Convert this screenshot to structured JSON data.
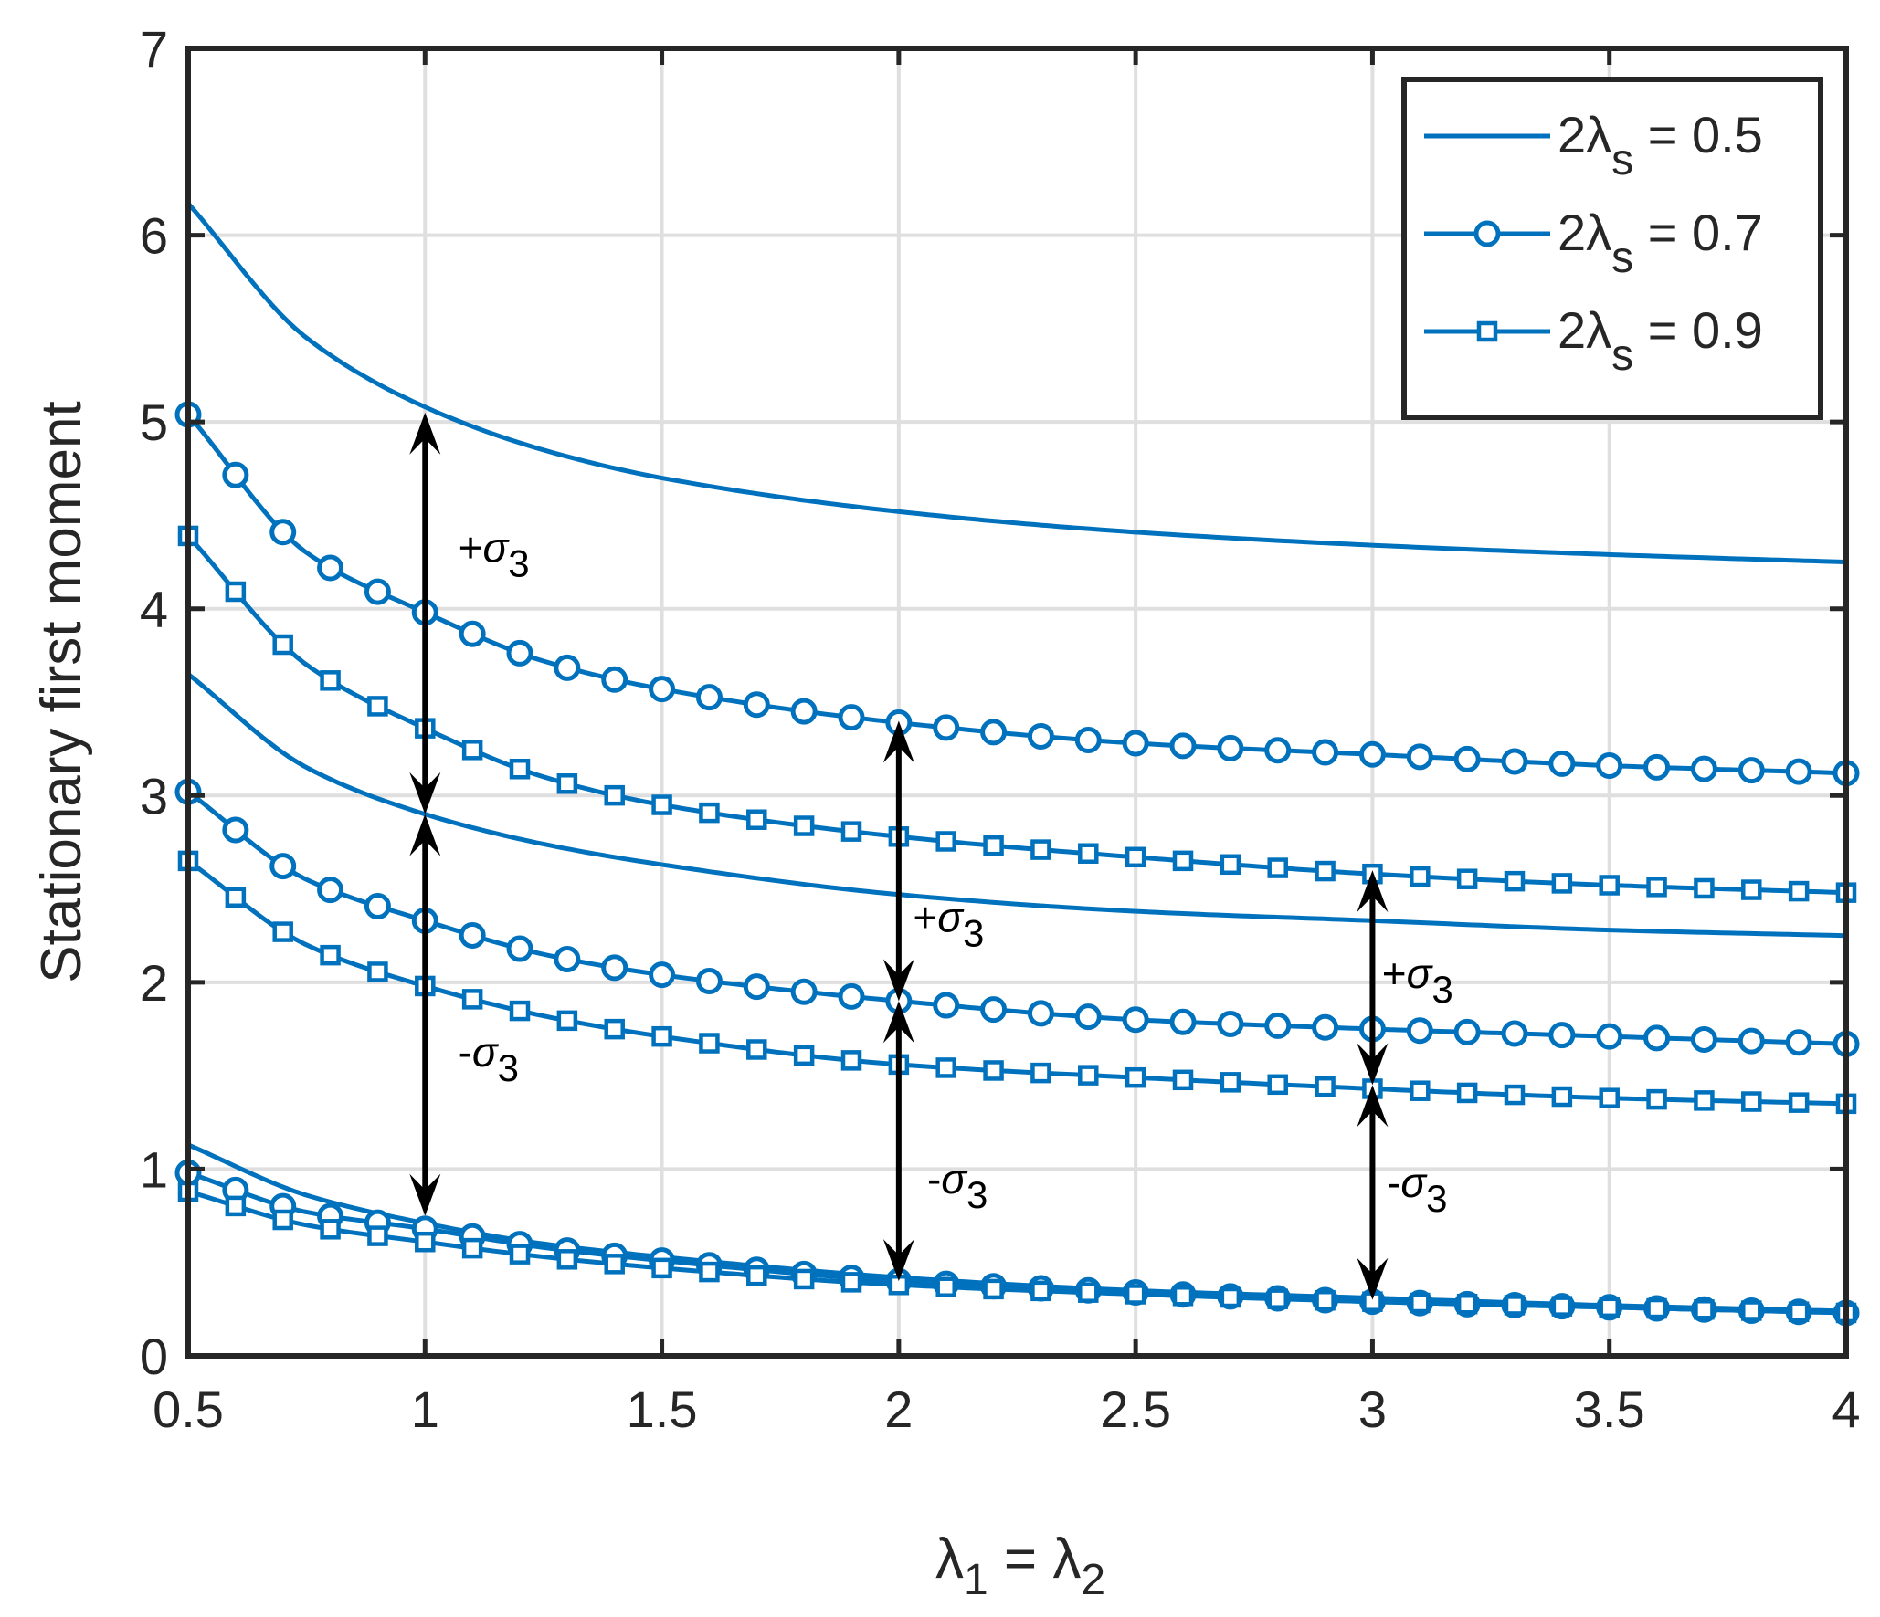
{
  "colors": {
    "series": "#0072BD",
    "arrow": "#000000",
    "grid": "#dfdfdf",
    "axis": "#262626"
  },
  "chart_data": {
    "type": "line",
    "xlabel": {
      "base": "λ",
      "sub1": "1",
      "mid": " = λ",
      "sub2": "2"
    },
    "ylabel": "Stationary first moment",
    "xlim": [
      0.5,
      4
    ],
    "ylim": [
      0,
      7
    ],
    "xticks": [
      "0.5",
      "1",
      "1.5",
      "2",
      "2.5",
      "3",
      "3.5",
      "4"
    ],
    "yticks": [
      "0",
      "1",
      "2",
      "3",
      "4",
      "5",
      "6",
      "7"
    ],
    "grid": true,
    "legend_position": "top-right",
    "legend": [
      {
        "prefix": "2λ",
        "sub": "s",
        "suffix": " = 0.5",
        "marker": "none"
      },
      {
        "prefix": "2λ",
        "sub": "s",
        "suffix": " = 0.7",
        "marker": "circle"
      },
      {
        "prefix": "2λ",
        "sub": "s",
        "suffix": " = 0.9",
        "marker": "square"
      }
    ],
    "series": [
      {
        "lambda_s2": 0.5,
        "marker": "none",
        "band": "upper",
        "x": [
          0.5,
          0.75,
          1,
          1.25,
          1.5,
          2,
          2.5,
          3,
          3.5,
          4
        ],
        "y": [
          6.17,
          5.45,
          5.08,
          4.85,
          4.7,
          4.52,
          4.41,
          4.34,
          4.29,
          4.25
        ]
      },
      {
        "lambda_s2": 0.5,
        "marker": "none",
        "band": "mean",
        "x": [
          0.5,
          0.75,
          1,
          1.25,
          1.5,
          2,
          2.5,
          3,
          3.5,
          4
        ],
        "y": [
          3.65,
          3.15,
          2.9,
          2.74,
          2.63,
          2.47,
          2.38,
          2.33,
          2.28,
          2.25
        ]
      },
      {
        "lambda_s2": 0.5,
        "marker": "none",
        "band": "lower",
        "x": [
          0.5,
          0.75,
          1,
          1.25,
          1.5,
          2,
          2.5,
          3,
          3.5,
          4
        ],
        "y": [
          1.13,
          0.86,
          0.71,
          0.6,
          0.53,
          0.42,
          0.35,
          0.31,
          0.27,
          0.24
        ]
      },
      {
        "lambda_s2": 0.7,
        "marker": "circle",
        "band": "upper",
        "x": [
          0.5,
          0.75,
          1,
          1.25,
          1.5,
          2,
          2.5,
          3,
          3.5,
          4
        ],
        "y": [
          5.04,
          4.3,
          3.98,
          3.72,
          3.57,
          3.39,
          3.28,
          3.22,
          3.16,
          3.12
        ]
      },
      {
        "lambda_s2": 0.7,
        "marker": "circle",
        "band": "mean",
        "x": [
          0.5,
          0.75,
          1,
          1.25,
          1.5,
          2,
          2.5,
          3,
          3.5,
          4
        ],
        "y": [
          3.02,
          2.55,
          2.33,
          2.15,
          2.04,
          1.9,
          1.8,
          1.75,
          1.71,
          1.67
        ]
      },
      {
        "lambda_s2": 0.7,
        "marker": "circle",
        "band": "lower",
        "x": [
          0.5,
          0.75,
          1,
          1.25,
          1.5,
          2,
          2.5,
          3,
          3.5,
          4
        ],
        "y": [
          0.98,
          0.77,
          0.68,
          0.58,
          0.51,
          0.4,
          0.34,
          0.29,
          0.26,
          0.23
        ]
      },
      {
        "lambda_s2": 0.9,
        "marker": "square",
        "band": "upper",
        "x": [
          0.5,
          0.75,
          1,
          1.25,
          1.5,
          2,
          2.5,
          3,
          3.5,
          4
        ],
        "y": [
          4.39,
          3.7,
          3.36,
          3.1,
          2.95,
          2.78,
          2.67,
          2.58,
          2.52,
          2.48
        ]
      },
      {
        "lambda_s2": 0.9,
        "marker": "square",
        "band": "mean",
        "x": [
          0.5,
          0.75,
          1,
          1.25,
          1.5,
          2,
          2.5,
          3,
          3.5,
          4
        ],
        "y": [
          2.65,
          2.2,
          1.98,
          1.82,
          1.71,
          1.56,
          1.49,
          1.43,
          1.38,
          1.35
        ]
      },
      {
        "lambda_s2": 0.9,
        "marker": "square",
        "band": "lower",
        "x": [
          0.5,
          0.75,
          1,
          1.25,
          1.5,
          2,
          2.5,
          3,
          3.5,
          4
        ],
        "y": [
          0.88,
          0.7,
          0.61,
          0.53,
          0.47,
          0.38,
          0.33,
          0.29,
          0.26,
          0.23
        ]
      }
    ],
    "annotations": [
      {
        "x": 1,
        "y_from": 2.9,
        "y_to": 5.05,
        "sign": "+",
        "symbol": "σ",
        "sub": "3",
        "label_at": [
          1.07,
          4.25
        ]
      },
      {
        "x": 1,
        "y_from": 0.75,
        "y_to": 2.9,
        "sign": "-",
        "symbol": "σ",
        "sub": "3",
        "label_at": [
          1.07,
          1.55
        ]
      },
      {
        "x": 2,
        "y_from": 1.9,
        "y_to": 3.4,
        "sign": "+",
        "symbol": "σ",
        "sub": "3",
        "label_at": [
          2.03,
          2.27
        ]
      },
      {
        "x": 2,
        "y_from": 0.4,
        "y_to": 1.9,
        "sign": "-",
        "symbol": "σ",
        "sub": "3",
        "label_at": [
          2.06,
          0.87
        ]
      },
      {
        "x": 3,
        "y_from": 1.45,
        "y_to": 2.6,
        "sign": "+",
        "symbol": "σ",
        "sub": "3",
        "label_at": [
          3.02,
          1.97
        ]
      },
      {
        "x": 3,
        "y_from": 0.3,
        "y_to": 1.45,
        "sign": "-",
        "symbol": "σ",
        "sub": "3",
        "label_at": [
          3.03,
          0.85
        ]
      }
    ]
  }
}
